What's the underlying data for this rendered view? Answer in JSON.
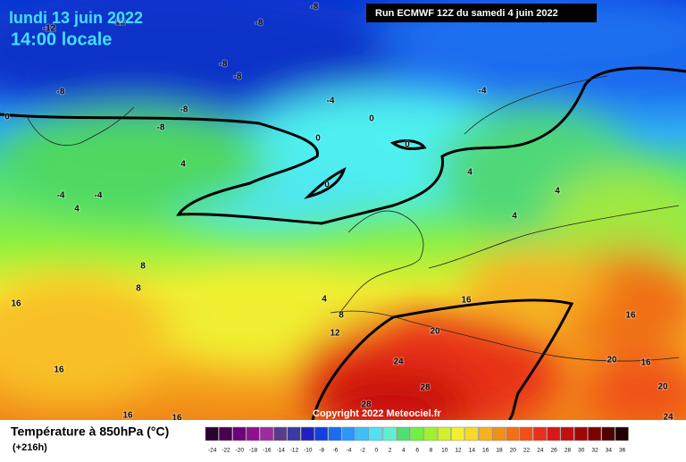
{
  "header": {
    "date": "lundi 13 juin 2022",
    "time": "14:00 locale"
  },
  "run": "Run ECMWF 12Z du samedi 4 juin 2022",
  "copyright": "Copyright 2022 Meteociel.fr",
  "legend": {
    "title": "Température à 850hPa (°C)",
    "lead": "(+216h)",
    "labels": [
      -24,
      -22,
      -20,
      -18,
      -16,
      -14,
      -12,
      -10,
      -8,
      -6,
      -4,
      -2,
      0,
      2,
      4,
      6,
      8,
      10,
      12,
      14,
      16,
      18,
      20,
      22,
      24,
      26,
      28,
      30,
      32,
      34,
      36
    ],
    "colors": [
      "#2a0030",
      "#4a0050",
      "#70007a",
      "#901090",
      "#a02aa0",
      "#5a3a8a",
      "#3a3aa0",
      "#2020c0",
      "#1040e0",
      "#1a6cf0",
      "#2898f8",
      "#40c0f8",
      "#50e0f0",
      "#60f0d0",
      "#50e070",
      "#70f040",
      "#a0f030",
      "#d0f030",
      "#f0f030",
      "#f8d828",
      "#f8b020",
      "#f09018",
      "#f07018",
      "#f05018",
      "#e83018",
      "#d81818",
      "#c01010",
      "#a00808",
      "#800000",
      "#500000",
      "#200000"
    ]
  },
  "map_labels": [
    -8,
    -8,
    -12,
    -12,
    -8,
    -8,
    -8,
    -8,
    -8,
    -4,
    -4,
    0,
    0,
    0,
    0,
    0,
    4,
    4,
    4,
    4,
    -4,
    -4,
    4,
    8,
    8,
    4,
    8,
    12,
    16,
    16,
    16,
    20,
    24,
    20,
    16,
    16,
    28,
    20,
    28,
    16,
    16,
    24
  ]
}
